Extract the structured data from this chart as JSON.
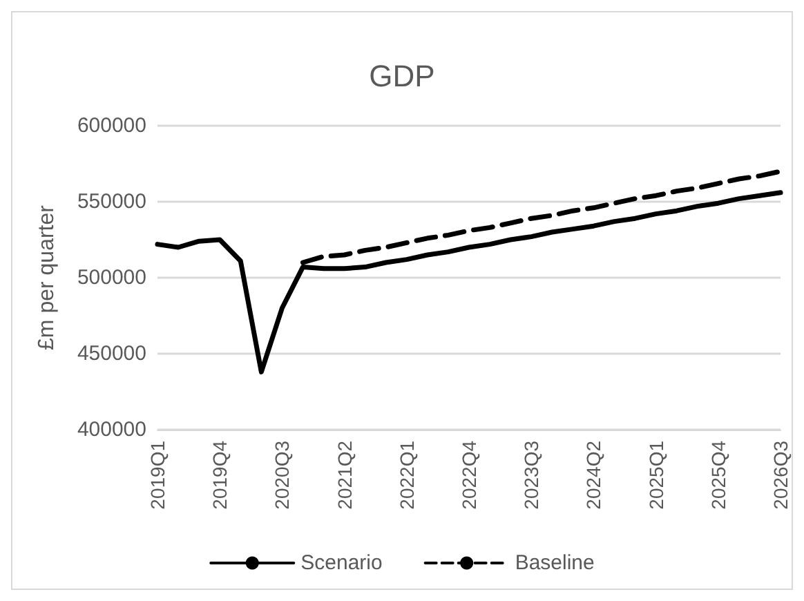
{
  "chart_data": {
    "type": "line",
    "title": "GDP",
    "ylabel": "£m per quarter",
    "categories": [
      "2019Q1",
      null,
      null,
      "2019Q4",
      null,
      null,
      "2020Q3",
      null,
      null,
      "2021Q2",
      null,
      null,
      "2022Q1",
      null,
      null,
      "2022Q4",
      null,
      null,
      "2023Q3",
      null,
      null,
      "2024Q2",
      null,
      null,
      "2025Q1",
      null,
      null,
      "2025Q4",
      null,
      null,
      "2026Q3"
    ],
    "series": [
      {
        "name": "Scenario",
        "color": "#000000",
        "line_style": "solid",
        "values": [
          522000,
          520000,
          524000,
          525000,
          511000,
          438000,
          480000,
          507000,
          506000,
          506000,
          507000,
          510000,
          512000,
          515000,
          517000,
          520000,
          522000,
          525000,
          527000,
          530000,
          532000,
          534000,
          537000,
          539000,
          542000,
          544000,
          547000,
          549000,
          552000,
          554000,
          556000
        ]
      },
      {
        "name": "Baseline",
        "color": "#000000",
        "line_style": "dashed",
        "values": [
          null,
          null,
          null,
          null,
          null,
          null,
          null,
          510000,
          514000,
          515000,
          518000,
          520000,
          523000,
          526000,
          528000,
          531000,
          533000,
          536000,
          539000,
          541000,
          544000,
          546000,
          549000,
          552000,
          554000,
          557000,
          559000,
          562000,
          565000,
          567000,
          570000
        ]
      }
    ],
    "ylim": [
      400000,
      600000
    ],
    "yticks": [
      400000,
      450000,
      500000,
      550000,
      600000
    ],
    "grid": "y",
    "legend": "bottom",
    "marker": "none"
  }
}
